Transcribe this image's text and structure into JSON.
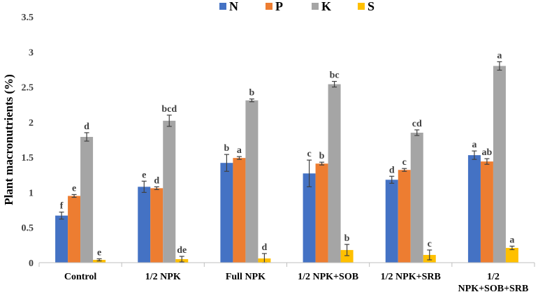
{
  "chart_data": {
    "type": "bar",
    "title": "",
    "xlabel": "",
    "ylabel": "Plant macronutrients (%)",
    "ylim": [
      0,
      3.5
    ],
    "yticks": [
      0,
      0.5,
      1,
      1.5,
      2,
      2.5,
      3,
      3.5
    ],
    "ytick_labels": [
      "0",
      "0.5",
      "1",
      "1.5",
      "2",
      "2.5",
      "3",
      "3.5"
    ],
    "grid": false,
    "legend_position": "top-center",
    "categories": [
      [
        "Control"
      ],
      [
        "1/2 NPK"
      ],
      [
        "Full NPK"
      ],
      [
        "1/2 NPK+SOB"
      ],
      [
        "1/2 NPK+SRB"
      ],
      [
        "1/2",
        "NPK+SOB+SRB"
      ]
    ],
    "series": [
      {
        "name": "N",
        "color": "#4472C4",
        "values": [
          0.67,
          1.08,
          1.42,
          1.27,
          1.18,
          1.53
        ],
        "errors": [
          0.05,
          0.08,
          0.12,
          0.19,
          0.05,
          0.06
        ],
        "labels": [
          "f",
          "e",
          "b",
          "c",
          "d",
          "a"
        ]
      },
      {
        "name": "P",
        "color": "#ED7D31",
        "values": [
          0.95,
          1.06,
          1.49,
          1.41,
          1.32,
          1.44
        ],
        "errors": [
          0.02,
          0.02,
          0.02,
          0.02,
          0.02,
          0.04
        ],
        "labels": [
          "e",
          "d",
          "a",
          "b",
          "c",
          "ab"
        ]
      },
      {
        "name": "K",
        "color": "#A5A5A5",
        "values": [
          1.79,
          2.02,
          2.31,
          2.54,
          1.85,
          2.8
        ],
        "errors": [
          0.06,
          0.08,
          0.02,
          0.04,
          0.04,
          0.06
        ],
        "labels": [
          "d",
          "bcd",
          "b",
          "bc",
          "cd",
          "a"
        ]
      },
      {
        "name": "S",
        "color": "#FFC000",
        "values": [
          0.04,
          0.05,
          0.06,
          0.18,
          0.11,
          0.21
        ],
        "errors": [
          0.015,
          0.04,
          0.07,
          0.08,
          0.07,
          0.025
        ],
        "labels": [
          "e",
          "de",
          "d",
          "b",
          "c",
          "a"
        ]
      }
    ]
  }
}
